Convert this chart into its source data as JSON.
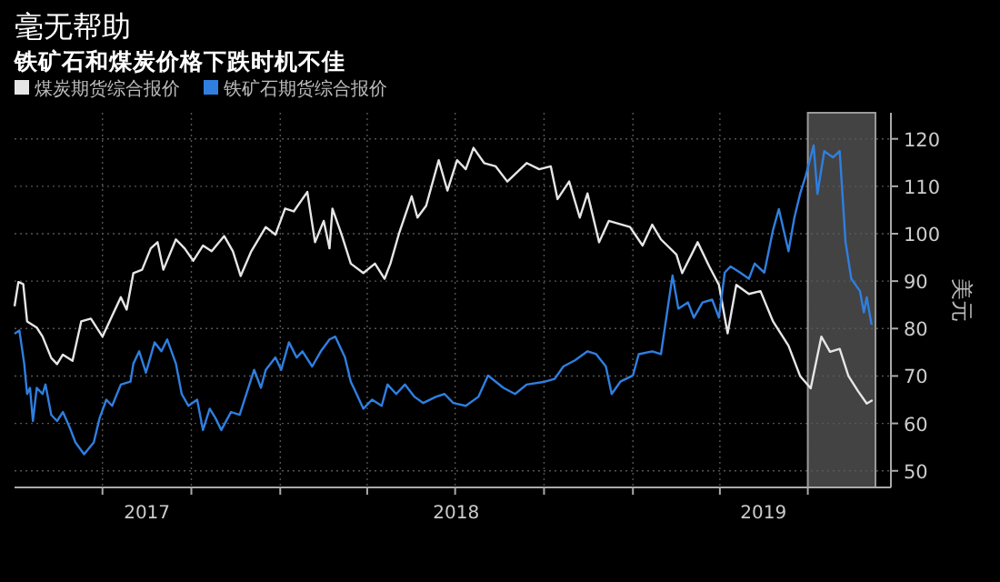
{
  "chart_data": {
    "type": "line",
    "title": "毫无帮助",
    "subtitle": "铁矿石和煤炭价格下跌时机不佳",
    "ylabel": "美元",
    "legend": "top left",
    "grid": true,
    "xlim": [
      "2017-04-01",
      "2019-09-25"
    ],
    "xticks": [
      {
        "value": "2017-07-01",
        "label": null
      },
      {
        "value": "2017-08-16",
        "label": "2017"
      },
      {
        "value": "2017-10-01",
        "label": null
      },
      {
        "value": "2018-01-01",
        "label": null
      },
      {
        "value": "2018-04-01",
        "label": null
      },
      {
        "value": "2018-07-01",
        "label": null
      },
      {
        "value": "2018-07-02",
        "label": "2018"
      },
      {
        "value": "2018-10-01",
        "label": null
      },
      {
        "value": "2019-01-01",
        "label": null
      },
      {
        "value": "2019-04-01",
        "label": null
      },
      {
        "value": "2019-05-16",
        "label": "2019"
      },
      {
        "value": "2019-07-01",
        "label": null
      }
    ],
    "ylim": [
      46.5,
      125.5
    ],
    "yticks": [
      50,
      60,
      70,
      80,
      90,
      100,
      110,
      120
    ],
    "bands": [
      {
        "axis": "x",
        "from": "2019-07-01",
        "to": "2019-09-09",
        "color": "#5a5a5a"
      }
    ],
    "series": [
      {
        "name": "煤炭期货综合报价",
        "color": "#e6e6e6",
        "x": [
          "2017-04-01",
          "2017-04-05",
          "2017-04-10",
          "2017-04-14",
          "2017-04-24",
          "2017-04-30",
          "2017-05-09",
          "2017-05-15",
          "2017-05-21",
          "2017-05-31",
          "2017-06-09",
          "2017-06-19",
          "2017-07-01",
          "2017-07-11",
          "2017-07-20",
          "2017-07-26",
          "2017-08-02",
          "2017-08-11",
          "2017-08-20",
          "2017-08-27",
          "2017-09-02",
          "2017-09-15",
          "2017-09-24",
          "2017-10-03",
          "2017-10-13",
          "2017-10-22",
          "2017-11-04",
          "2017-11-13",
          "2017-11-21",
          "2017-12-02",
          "2017-12-17",
          "2017-12-27",
          "2018-01-06",
          "2018-01-15",
          "2018-01-29",
          "2018-02-06",
          "2018-02-15",
          "2018-02-21",
          "2018-02-24",
          "2018-03-06",
          "2018-03-15",
          "2018-03-28",
          "2018-04-09",
          "2018-04-19",
          "2018-04-25",
          "2018-05-04",
          "2018-05-17",
          "2018-05-23",
          "2018-06-01",
          "2018-06-14",
          "2018-06-23",
          "2018-07-03",
          "2018-07-12",
          "2018-07-20",
          "2018-07-31",
          "2018-08-12",
          "2018-08-24",
          "2018-09-13",
          "2018-09-26",
          "2018-10-08",
          "2018-10-15",
          "2018-10-27",
          "2018-11-07",
          "2018-11-15",
          "2018-11-27",
          "2018-12-07",
          "2018-12-29",
          "2019-01-11",
          "2019-01-21",
          "2019-01-30",
          "2019-02-15",
          "2019-02-21",
          "2019-03-09",
          "2019-03-21",
          "2019-03-31",
          "2019-04-09",
          "2019-04-18",
          "2019-05-01",
          "2019-05-13",
          "2019-05-26",
          "2019-06-11",
          "2019-06-23",
          "2019-07-04",
          "2019-07-15",
          "2019-07-24",
          "2019-08-03",
          "2019-08-12",
          "2019-08-22",
          "2019-08-31",
          "2019-09-06"
        ],
        "values": [
          84.7,
          89.8,
          89.4,
          81.5,
          80.2,
          78.3,
          73.8,
          72.5,
          74.5,
          73.2,
          81.5,
          82.1,
          78.3,
          82.7,
          86.6,
          84.0,
          91.7,
          92.4,
          96.9,
          98.2,
          92.4,
          98.8,
          96.9,
          94.3,
          97.5,
          96.3,
          99.5,
          96.3,
          91.1,
          96.3,
          101.4,
          99.8,
          105.3,
          104.7,
          108.8,
          98.2,
          102.7,
          96.9,
          105.3,
          99.5,
          93.7,
          91.7,
          93.7,
          90.5,
          93.7,
          100.1,
          107.9,
          103.4,
          105.9,
          115.5,
          109.1,
          115.5,
          113.6,
          118.1,
          114.9,
          114.2,
          111.0,
          114.9,
          113.6,
          114.2,
          107.3,
          111.0,
          103.4,
          108.5,
          98.2,
          102.7,
          101.4,
          97.5,
          101.9,
          98.8,
          95.6,
          91.7,
          98.2,
          93.1,
          89.2,
          79.0,
          89.2,
          87.3,
          87.9,
          81.5,
          76.4,
          70.0,
          67.4,
          78.3,
          75.1,
          75.7,
          70.0,
          66.8,
          64.2,
          64.9
        ]
      },
      {
        "name": "铁矿石期货综合报价",
        "color": "#2f7fe0",
        "x": [
          "2017-04-01",
          "2017-04-06",
          "2017-04-11",
          "2017-04-14",
          "2017-04-17",
          "2017-04-20",
          "2017-04-24",
          "2017-04-30",
          "2017-05-03",
          "2017-05-09",
          "2017-05-15",
          "2017-05-21",
          "2017-05-28",
          "2017-06-03",
          "2017-06-12",
          "2017-06-22",
          "2017-06-28",
          "2017-07-05",
          "2017-07-11",
          "2017-07-20",
          "2017-07-30",
          "2017-08-02",
          "2017-08-08",
          "2017-08-15",
          "2017-08-24",
          "2017-08-31",
          "2017-09-06",
          "2017-09-15",
          "2017-09-21",
          "2017-09-28",
          "2017-10-07",
          "2017-10-13",
          "2017-10-20",
          "2017-10-26",
          "2017-11-01",
          "2017-11-11",
          "2017-11-20",
          "2017-11-29",
          "2017-12-05",
          "2017-12-12",
          "2017-12-17",
          "2017-12-27",
          "2018-01-02",
          "2018-01-10",
          "2018-01-18",
          "2018-01-24",
          "2018-02-03",
          "2018-02-12",
          "2018-02-21",
          "2018-02-27",
          "2018-03-09",
          "2018-03-15",
          "2018-03-21",
          "2018-03-28",
          "2018-04-06",
          "2018-04-16",
          "2018-04-22",
          "2018-05-01",
          "2018-05-10",
          "2018-05-20",
          "2018-05-29",
          "2018-06-11",
          "2018-06-20",
          "2018-06-29",
          "2018-07-12",
          "2018-07-25",
          "2018-08-04",
          "2018-08-12",
          "2018-08-20",
          "2018-09-01",
          "2018-09-13",
          "2018-10-02",
          "2018-10-12",
          "2018-10-21",
          "2018-11-02",
          "2018-11-15",
          "2018-11-24",
          "2018-12-04",
          "2018-12-10",
          "2018-12-19",
          "2019-01-01",
          "2019-01-07",
          "2019-01-21",
          "2019-01-30",
          "2019-02-05",
          "2019-02-11",
          "2019-02-17",
          "2019-02-27",
          "2019-03-05",
          "2019-03-14",
          "2019-03-24",
          "2019-03-31",
          "2019-04-06",
          "2019-04-12",
          "2019-04-22",
          "2019-05-01",
          "2019-05-07",
          "2019-05-17",
          "2019-05-26",
          "2019-06-01",
          "2019-06-11",
          "2019-06-17",
          "2019-06-23",
          "2019-06-29",
          "2019-07-07",
          "2019-07-11",
          "2019-07-18",
          "2019-07-27",
          "2019-08-03",
          "2019-08-09",
          "2019-08-15",
          "2019-08-24",
          "2019-08-28",
          "2019-08-31",
          "2019-09-05"
        ],
        "values": [
          78.9,
          79.6,
          72.6,
          66.2,
          67.5,
          60.5,
          67.5,
          66.2,
          68.2,
          61.8,
          60.5,
          62.4,
          59.2,
          56.0,
          53.5,
          56.0,
          61.1,
          65.0,
          63.7,
          68.2,
          68.8,
          72.6,
          75.2,
          70.7,
          77.1,
          75.2,
          77.7,
          72.6,
          66.2,
          63.7,
          65.0,
          58.6,
          63.1,
          61.1,
          58.6,
          62.4,
          61.8,
          67.5,
          71.3,
          67.5,
          71.3,
          73.9,
          71.3,
          77.1,
          73.9,
          75.2,
          72.0,
          75.2,
          77.7,
          78.3,
          73.9,
          68.8,
          66.2,
          63.1,
          65.0,
          63.7,
          68.2,
          66.2,
          68.2,
          65.6,
          64.3,
          65.6,
          66.2,
          64.3,
          63.7,
          65.6,
          70.1,
          68.8,
          67.5,
          66.2,
          68.2,
          68.8,
          69.4,
          72.0,
          73.3,
          75.2,
          74.6,
          72.0,
          66.2,
          68.8,
          70.1,
          74.6,
          75.2,
          74.6,
          82.9,
          91.2,
          84.2,
          85.5,
          82.3,
          85.5,
          86.1,
          82.3,
          91.8,
          93.1,
          91.8,
          90.5,
          93.7,
          91.8,
          100.8,
          105.2,
          96.3,
          103.3,
          108.4,
          112.3,
          118.6,
          108.4,
          117.4,
          116.1,
          117.4,
          98.3,
          90.5,
          87.9,
          83.4,
          86.6,
          80.8
        ]
      }
    ]
  }
}
